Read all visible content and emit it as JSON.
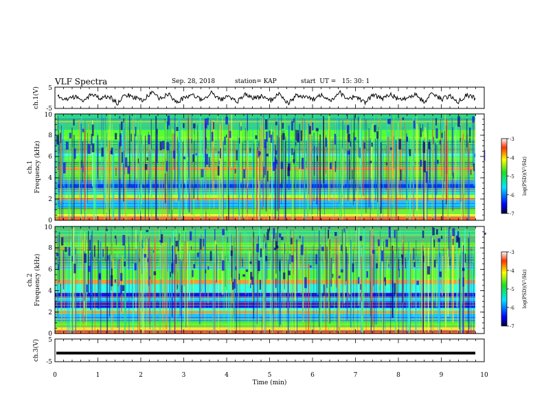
{
  "header": {
    "title": "VLF Spectra",
    "date": "Sep. 28, 2018",
    "station": "station= KAP",
    "start_ut": "start  UT =   15: 30: 1"
  },
  "chart_data": [
    {
      "id": "ch1-waveform",
      "type": "line",
      "ylabel": "ch.1(V)",
      "yticks": [
        "5",
        "-5"
      ],
      "ylim": [
        -5,
        5
      ],
      "xlim": [
        0,
        10
      ],
      "series": [
        {
          "values": [
            1.2,
            -0.8,
            0.6,
            -1.9,
            2.1,
            -0.4,
            0.9,
            -2.6,
            1.5,
            0.2,
            -1.1,
            2.4,
            -0.6,
            1.8,
            -2.2,
            0.4,
            1.1,
            -1.5,
            2.6,
            -0.9,
            0.3,
            -2.0,
            1.7,
            -0.2,
            0.8,
            -1.3,
            2.2,
            -2.7,
            1.0,
            0.5,
            -0.7,
            1.9,
            -1.6,
            2.8,
            -0.3,
            0.7,
            -2.4,
            1.3,
            -0.5,
            2.0,
            -1.0,
            0.1,
            1.6,
            -2.1,
            2.5,
            -0.8,
            0.9,
            -1.7,
            1.4,
            -0.1
          ]
        }
      ]
    },
    {
      "id": "ch1-spectrogram",
      "type": "heatmap",
      "ylabel": "ch.1  Frequency (kHz)",
      "yticks": [
        "0",
        "2",
        "4",
        "6",
        "8",
        "10"
      ],
      "ylim": [
        0,
        10
      ],
      "xlim": [
        0,
        10
      ],
      "colorbar": {
        "label": "log(PSD)(V²/Hz)",
        "ticks": [
          "-3",
          "-4",
          "-5",
          "-6",
          "-7"
        ],
        "range": [
          -7,
          -3
        ]
      }
    },
    {
      "id": "ch2-spectrogram",
      "type": "heatmap",
      "ylabel": "ch.2  Frequency (kHz)",
      "yticks": [
        "0",
        "2",
        "4",
        "6",
        "8",
        "10"
      ],
      "ylim": [
        0,
        10
      ],
      "xlim": [
        0,
        10
      ],
      "colorbar": {
        "label": "log(PSD)(V²/Hz)",
        "ticks": [
          "-3",
          "-4",
          "-5",
          "-6",
          "-7"
        ],
        "range": [
          -7,
          -3
        ]
      }
    },
    {
      "id": "ch3-waveform",
      "type": "line",
      "ylabel": "ch.3(V)",
      "yticks": [
        "5",
        "-5"
      ],
      "ylim": [
        -5,
        5
      ],
      "xlim": [
        0,
        10
      ],
      "xlabel": "Time  (min)",
      "xticks": [
        "0",
        "1",
        "2",
        "3",
        "4",
        "5",
        "6",
        "7",
        "8",
        "9",
        "10"
      ],
      "series": [
        {
          "values": [
            -1.2,
            -1.2
          ]
        }
      ]
    }
  ]
}
